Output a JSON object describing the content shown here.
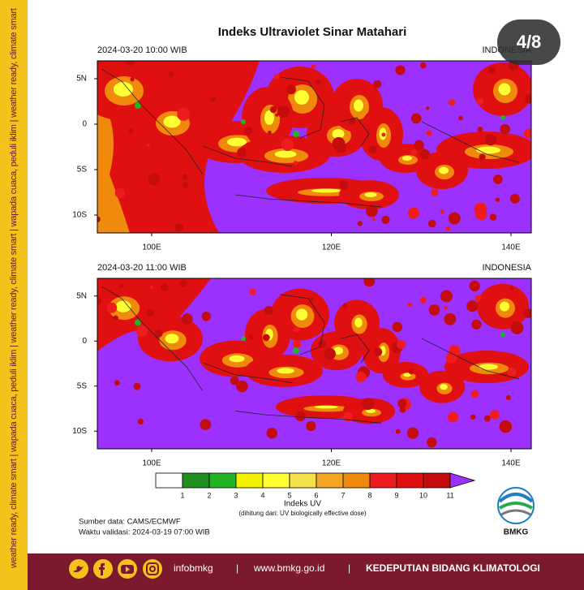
{
  "sidebar_text": "weather ready, climate smart | wapada cuaca, peduli iklim | weather ready, climate smart | wapada cuaca, peduli iklim | weather ready, climate smart",
  "title": "Indeks Ultraviolet Sinar Matahari",
  "page_badge": "4/8",
  "maps": [
    {
      "time": "2024-03-20  10:00 WIB",
      "region": "INDONESIA",
      "lat_labels": [
        "5N",
        "0",
        "5S",
        "10S"
      ],
      "lon_labels": [
        "100E",
        "120E",
        "140E"
      ]
    },
    {
      "time": "2024-03-20  11:00 WIB",
      "region": "INDONESIA",
      "lat_labels": [
        "5N",
        "0",
        "5S",
        "10S"
      ],
      "lon_labels": [
        "100E",
        "120E",
        "140E"
      ]
    }
  ],
  "colorbar": {
    "labels": [
      "1",
      "2",
      "3",
      "4",
      "5",
      "6",
      "7",
      "8",
      "9",
      "10",
      "11"
    ],
    "colors": [
      "#ffffff",
      "#1f8f1f",
      "#22b422",
      "#f2f200",
      "#ffff33",
      "#f5e14a",
      "#f5a623",
      "#f08a0c",
      "#ee1c1c",
      "#e01010",
      "#c40c0c",
      "#9b30ff"
    ],
    "title": "Indeks UV",
    "note": "(dihitung dari: UV biologically effective dose)"
  },
  "source": "Sumber data: CAMS/ECMWF",
  "validity": "Waktu validasi: 2024-03-19 07:00 WIB",
  "logo_text": "BMKG",
  "footer": {
    "handle": "infobmkg",
    "separator": "|",
    "website": "www.bmkg.go.id",
    "department": "KEDEPUTIAN BIDANG KLIMATOLOGI"
  }
}
